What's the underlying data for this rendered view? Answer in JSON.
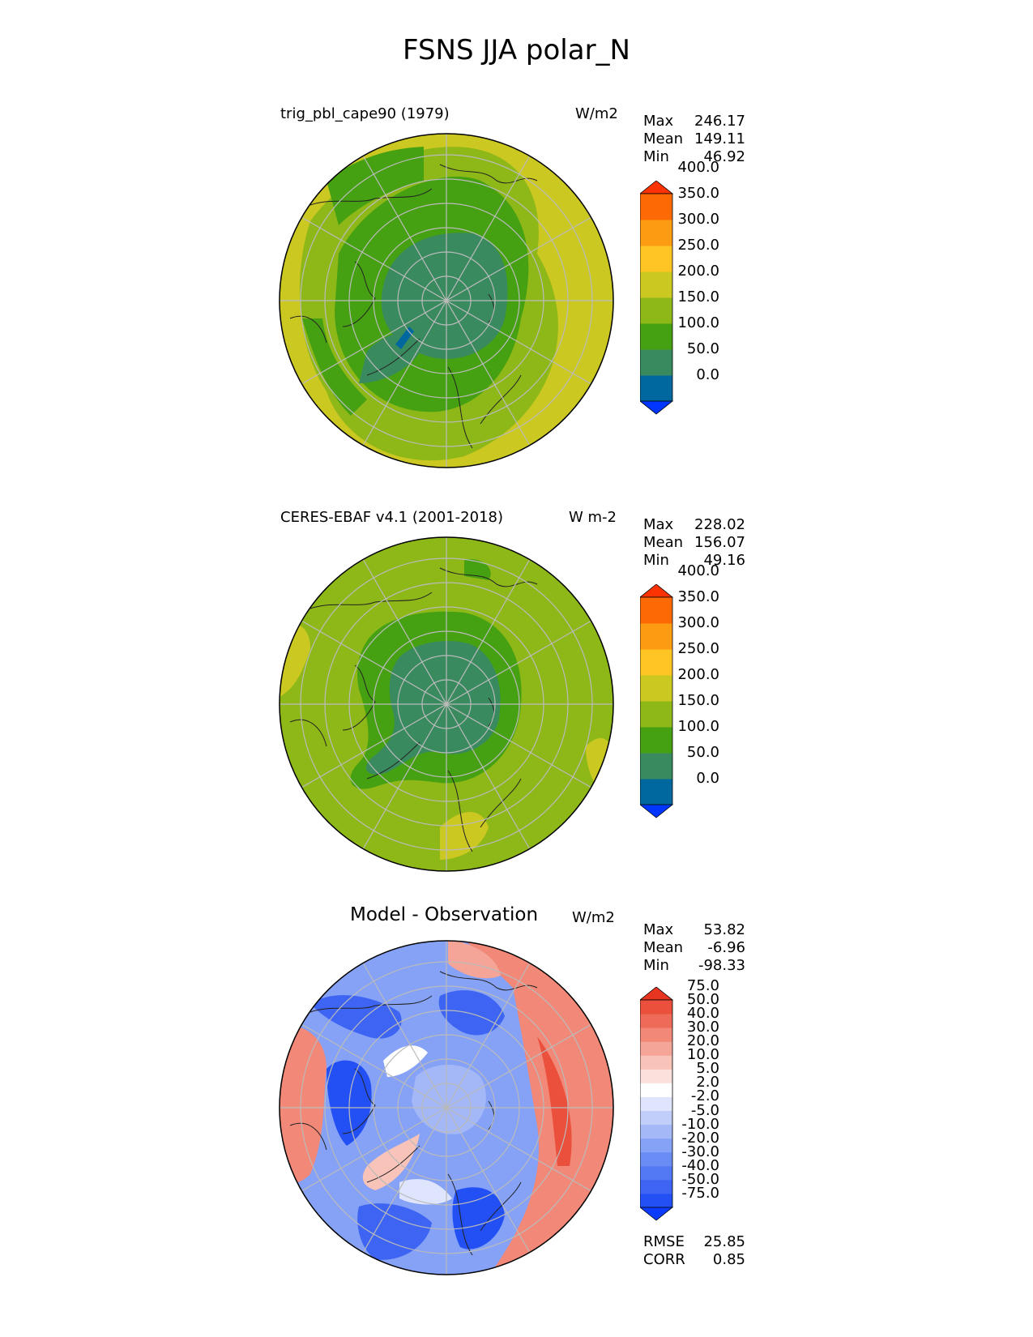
{
  "title": "FSNS JJA polar_N",
  "panels": [
    {
      "id": "test",
      "title": "trig_pbl_cape90 (1979)",
      "units": "W/m2",
      "stats": [
        {
          "label": "Max",
          "value": "246.17"
        },
        {
          "label": "Mean",
          "value": "149.11"
        },
        {
          "label": "Min",
          "value": "46.92"
        }
      ],
      "colorbar": {
        "labels": [
          "400.0",
          "350.0",
          "300.0",
          "250.0",
          "200.0",
          "150.0",
          "100.0",
          "50.0",
          "0.0"
        ],
        "colors": [
          "#0036ff",
          "#00689e",
          "#3a8a5f",
          "#45a111",
          "#8eb818",
          "#ccc822",
          "#fdc424",
          "#fd9b13",
          "#fd6a05",
          "#fd3303"
        ]
      }
    },
    {
      "id": "ref",
      "title": "CERES-EBAF v4.1 (2001-2018)",
      "units": "W m-2",
      "stats": [
        {
          "label": "Max",
          "value": "228.02"
        },
        {
          "label": "Mean",
          "value": "156.07"
        },
        {
          "label": "Min",
          "value": "49.16"
        }
      ],
      "colorbar": {
        "labels": [
          "400.0",
          "350.0",
          "300.0",
          "250.0",
          "200.0",
          "150.0",
          "100.0",
          "50.0",
          "0.0"
        ],
        "colors": [
          "#0036ff",
          "#00689e",
          "#3a8a5f",
          "#45a111",
          "#8eb818",
          "#ccc822",
          "#fdc424",
          "#fd9b13",
          "#fd6a05",
          "#fd3303"
        ]
      }
    },
    {
      "id": "diff",
      "title": "Model - Observation",
      "units": "W/m2",
      "stats": [
        {
          "label": "Max",
          "value": "53.82"
        },
        {
          "label": "Mean",
          "value": "-6.96"
        },
        {
          "label": "Min",
          "value": "-98.33"
        }
      ],
      "extra_stats": [
        {
          "label": "RMSE",
          "value": "25.85"
        },
        {
          "label": "CORR",
          "value": "0.85"
        }
      ],
      "colorbar": {
        "labels": [
          "75.0",
          "50.0",
          "40.0",
          "30.0",
          "20.0",
          "10.0",
          "5.0",
          "2.0",
          "-2.0",
          "-5.0",
          "-10.0",
          "-20.0",
          "-30.0",
          "-40.0",
          "-50.0",
          "-75.0"
        ],
        "colors": [
          "#0b3bff",
          "#2350f5",
          "#3d64f2",
          "#5278f3",
          "#6a8cf5",
          "#86a2f6",
          "#a4b8f8",
          "#c2cefa",
          "#dfe5fc",
          "#ffffff",
          "#fbe1dc",
          "#f8c3b8",
          "#f4a597",
          "#f28877",
          "#ee6b59",
          "#eb503c",
          "#e8351f"
        ]
      }
    }
  ]
}
